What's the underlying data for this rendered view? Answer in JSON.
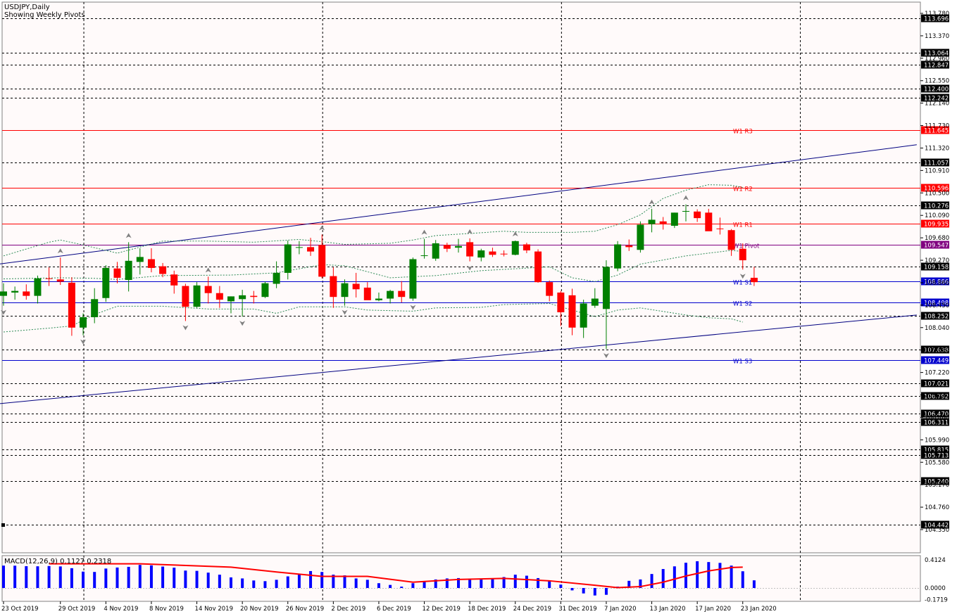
{
  "header": {
    "symbol": "USDJPY,Daily",
    "subtitle": "Showing Weekly Pivots"
  },
  "colors": {
    "background": "#fffafa",
    "bull": "#008000",
    "bear": "#ff0000",
    "pivot": "#800080",
    "resistance": "#ff0000",
    "support": "#0000cd",
    "channel": "#000080",
    "envelope": "#2e8b57",
    "fractal": "#808080",
    "macd_hist": "#0000ff",
    "macd_signal": "#ff0000"
  },
  "chart_data": [
    {
      "type": "candlestick",
      "title": "USDJPY,Daily",
      "subtitle": "Showing Weekly Pivots",
      "ylim": [
        104.35,
        113.78
      ],
      "price_scale_labels": [
        "113.780",
        "113.370",
        "112.960",
        "112.550",
        "112.140",
        "111.730",
        "111.320",
        "110.910",
        "110.500",
        "110.090",
        "109.680",
        "109.270",
        "108.860",
        "108.450",
        "108.040",
        "107.630",
        "107.220",
        "106.810",
        "106.400",
        "105.990",
        "105.580",
        "105.170",
        "104.760",
        "104.350"
      ],
      "x_labels": [
        {
          "index": 0,
          "label": "23 Oct 2019"
        },
        {
          "index": 5,
          "label": "29 Oct 2019"
        },
        {
          "index": 9,
          "label": "4 Nov 2019"
        },
        {
          "index": 13,
          "label": "8 Nov 2019"
        },
        {
          "index": 17,
          "label": "14 Nov 2019"
        },
        {
          "index": 21,
          "label": "20 Nov 2019"
        },
        {
          "index": 25,
          "label": "26 Nov 2019"
        },
        {
          "index": 29,
          "label": "2 Dec 2019"
        },
        {
          "index": 33,
          "label": "6 Dec 2019"
        },
        {
          "index": 37,
          "label": "12 Dec 2019"
        },
        {
          "index": 41,
          "label": "18 Dec 2019"
        },
        {
          "index": 45,
          "label": "24 Dec 2019"
        },
        {
          "index": 49,
          "label": "31 Dec 2019"
        },
        {
          "index": 53,
          "label": "7 Jan 2020"
        },
        {
          "index": 57,
          "label": "13 Jan 2020"
        },
        {
          "index": 61,
          "label": "17 Jan 2020"
        },
        {
          "index": 65,
          "label": "23 Jan 2020"
        }
      ],
      "ohlc": [
        [
          108.62,
          108.85,
          108.44,
          108.7
        ],
        [
          108.68,
          108.79,
          108.55,
          108.71
        ],
        [
          108.7,
          108.83,
          108.55,
          108.62
        ],
        [
          108.62,
          108.99,
          108.48,
          108.94
        ],
        [
          108.94,
          109.14,
          108.8,
          108.93
        ],
        [
          108.92,
          109.32,
          108.82,
          108.88
        ],
        [
          108.86,
          108.96,
          107.89,
          108.04
        ],
        [
          108.04,
          108.3,
          107.9,
          108.23
        ],
        [
          108.23,
          108.76,
          108.12,
          108.56
        ],
        [
          108.58,
          109.18,
          108.51,
          109.13
        ],
        [
          109.12,
          109.24,
          108.85,
          108.95
        ],
        [
          108.91,
          109.6,
          108.7,
          109.26
        ],
        [
          109.24,
          109.49,
          109.01,
          109.33
        ],
        [
          109.29,
          109.49,
          109.05,
          109.13
        ],
        [
          109.16,
          109.22,
          108.96,
          109.02
        ],
        [
          109.01,
          109.08,
          108.66,
          108.81
        ],
        [
          108.8,
          108.84,
          108.16,
          108.42
        ],
        [
          108.42,
          108.87,
          108.4,
          108.81
        ],
        [
          108.8,
          108.97,
          108.48,
          108.67
        ],
        [
          108.67,
          108.8,
          108.4,
          108.55
        ],
        [
          108.52,
          108.61,
          108.3,
          108.61
        ],
        [
          108.56,
          108.73,
          108.24,
          108.63
        ],
        [
          108.62,
          108.71,
          108.48,
          108.6
        ],
        [
          108.6,
          108.88,
          108.58,
          108.85
        ],
        [
          108.84,
          109.25,
          108.76,
          109.04
        ],
        [
          109.04,
          109.63,
          108.92,
          109.56
        ],
        [
          109.5,
          109.62,
          109.38,
          109.51
        ],
        [
          109.51,
          109.68,
          109.35,
          109.43
        ],
        [
          109.55,
          109.74,
          108.94,
          108.97
        ],
        [
          108.98,
          109.14,
          108.4,
          108.6
        ],
        [
          108.6,
          108.92,
          108.44,
          108.85
        ],
        [
          108.84,
          109.04,
          108.59,
          108.74
        ],
        [
          108.77,
          108.87,
          108.56,
          108.54
        ],
        [
          108.54,
          108.68,
          108.52,
          108.57
        ],
        [
          108.57,
          108.73,
          108.48,
          108.71
        ],
        [
          108.71,
          108.89,
          108.5,
          108.6
        ],
        [
          108.57,
          109.32,
          108.53,
          109.29
        ],
        [
          109.35,
          109.66,
          109.3,
          109.36
        ],
        [
          109.3,
          109.64,
          109.26,
          109.58
        ],
        [
          109.55,
          109.59,
          109.42,
          109.48
        ],
        [
          109.5,
          109.66,
          109.41,
          109.53
        ],
        [
          109.6,
          109.67,
          109.25,
          109.34
        ],
        [
          109.32,
          109.48,
          109.25,
          109.45
        ],
        [
          109.43,
          109.5,
          109.33,
          109.37
        ],
        [
          109.39,
          109.45,
          109.34,
          109.38
        ],
        [
          109.37,
          109.63,
          109.36,
          109.62
        ],
        [
          109.56,
          109.59,
          109.4,
          109.45
        ],
        [
          109.43,
          109.47,
          108.86,
          108.87
        ],
        [
          108.87,
          108.9,
          108.52,
          108.62
        ],
        [
          108.68,
          108.71,
          108.07,
          108.32
        ],
        [
          108.63,
          108.75,
          107.9,
          108.04
        ],
        [
          108.04,
          108.55,
          107.85,
          108.48
        ],
        [
          108.44,
          108.76,
          108.4,
          108.57
        ],
        [
          108.38,
          109.27,
          107.65,
          109.15
        ],
        [
          109.12,
          109.62,
          109.07,
          109.56
        ],
        [
          109.54,
          109.65,
          109.44,
          109.51
        ],
        [
          109.46,
          109.98,
          109.41,
          109.92
        ],
        [
          109.93,
          110.21,
          109.78,
          110.01
        ],
        [
          109.98,
          110.06,
          109.83,
          109.94
        ],
        [
          109.9,
          110.14,
          109.86,
          110.14
        ],
        [
          110.16,
          110.29,
          109.98,
          110.17
        ],
        [
          110.16,
          110.2,
          109.97,
          110.04
        ],
        [
          110.14,
          110.21,
          109.81,
          109.8
        ],
        [
          109.85,
          110.05,
          109.74,
          109.84
        ],
        [
          109.82,
          109.84,
          109.35,
          109.46
        ],
        [
          109.48,
          109.58,
          109.1,
          109.27
        ],
        [
          108.95,
          109.15,
          108.8,
          108.87
        ]
      ],
      "horizontal_levels": [
        {
          "value": 113.696,
          "label": "113.696",
          "style": "dashed",
          "color": "#000000"
        },
        {
          "value": 113.064,
          "label": "113.064",
          "style": "dashed",
          "color": "#000000"
        },
        {
          "value": 112.847,
          "label": "112.847",
          "style": "dashed",
          "color": "#000000"
        },
        {
          "value": 112.4,
          "label": "112.400",
          "style": "dashed",
          "color": "#000000"
        },
        {
          "value": 112.242,
          "label": "112.242",
          "style": "dashed",
          "color": "#000000"
        },
        {
          "value": 111.645,
          "label": "111.645",
          "style": "solid",
          "color": "#ff0000",
          "name": "W1 R3"
        },
        {
          "value": 111.057,
          "label": "111.057",
          "style": "dashed",
          "color": "#000000"
        },
        {
          "value": 110.596,
          "label": "110.596",
          "style": "solid",
          "color": "#ff0000",
          "name": "W1 R2"
        },
        {
          "value": 110.276,
          "label": "110.276",
          "style": "dashed",
          "color": "#000000"
        },
        {
          "value": 109.935,
          "label": "109.935",
          "style": "solid",
          "color": "#ff0000",
          "name": "W1 R1"
        },
        {
          "value": 109.547,
          "label": "109.547",
          "style": "solid",
          "color": "#800080",
          "name": "W1 Pivot"
        },
        {
          "value": 109.158,
          "label": "109.158",
          "style": "dashed",
          "color": "#000000"
        },
        {
          "value": 108.886,
          "label": "108.886",
          "style": "solid",
          "color": "#0000cd",
          "name": "W1 S1"
        },
        {
          "value": 108.498,
          "label": "108.498",
          "style": "solid",
          "color": "#0000cd",
          "name": "W1 S2"
        },
        {
          "value": 108.252,
          "label": "108.252",
          "style": "dashed",
          "color": "#000000"
        },
        {
          "value": 107.638,
          "label": "107.638",
          "style": "dashed",
          "color": "#000000"
        },
        {
          "value": 107.449,
          "label": "107.449",
          "style": "solid",
          "color": "#0000cd",
          "name": "W1 S3"
        },
        {
          "value": 107.021,
          "label": "107.021",
          "style": "dashed",
          "color": "#000000"
        },
        {
          "value": 106.792,
          "label": "106.792",
          "style": "dashed",
          "color": "#000000"
        },
        {
          "value": 106.47,
          "label": "106.470",
          "style": "dashed",
          "color": "#000000"
        },
        {
          "value": 106.311,
          "label": "106.311",
          "style": "dashed",
          "color": "#000000"
        },
        {
          "value": 105.815,
          "label": "105.815",
          "style": "dashed",
          "color": "#000000"
        },
        {
          "value": 105.713,
          "label": "105.713",
          "style": "dashed",
          "color": "#000000"
        },
        {
          "value": 105.24,
          "label": "105.240",
          "style": "dashed",
          "color": "#000000"
        },
        {
          "value": 104.442,
          "label": "104.442",
          "style": "dashed",
          "color": "#000000"
        }
      ],
      "channel_lines": [
        {
          "start": {
            "index": -0.4,
            "value": 109.2
          },
          "end": {
            "index": 80.3,
            "value": 111.38
          }
        },
        {
          "start": {
            "index": -0.4,
            "value": 106.65
          },
          "end": {
            "index": 80.3,
            "value": 108.27
          }
        }
      ],
      "envelope_upper": [
        [
          0,
          109.35
        ],
        [
          4,
          109.6
        ],
        [
          5,
          109.64
        ],
        [
          7,
          109.55
        ],
        [
          10,
          109.4
        ],
        [
          14,
          109.62
        ],
        [
          18,
          109.62
        ],
        [
          22,
          109.6
        ],
        [
          26,
          109.65
        ],
        [
          28,
          109.61
        ],
        [
          30,
          109.56
        ],
        [
          34,
          109.58
        ],
        [
          36,
          109.64
        ],
        [
          38,
          109.72
        ],
        [
          44,
          109.8
        ],
        [
          46,
          109.78
        ],
        [
          50,
          109.78
        ],
        [
          52,
          109.8
        ],
        [
          54,
          109.92
        ],
        [
          56,
          110.1
        ],
        [
          58,
          110.4
        ],
        [
          60,
          110.55
        ],
        [
          62,
          110.65
        ],
        [
          64,
          110.64
        ],
        [
          65,
          110.6
        ]
      ],
      "envelope_middle": [
        [
          0,
          108.93
        ],
        [
          5,
          108.95
        ],
        [
          8,
          108.94
        ],
        [
          10,
          108.92
        ],
        [
          14,
          108.99
        ],
        [
          20,
          109.0
        ],
        [
          24,
          109.04
        ],
        [
          28,
          109.19
        ],
        [
          30,
          109.17
        ],
        [
          34,
          108.95
        ],
        [
          38,
          108.99
        ],
        [
          42,
          109.08
        ],
        [
          48,
          109.15
        ],
        [
          50,
          108.95
        ],
        [
          52,
          108.88
        ],
        [
          54,
          109.0
        ],
        [
          56,
          109.2
        ],
        [
          60,
          109.35
        ],
        [
          64,
          109.45
        ],
        [
          65,
          109.43
        ]
      ],
      "envelope_lower": [
        [
          0,
          107.96
        ],
        [
          4,
          108.03
        ],
        [
          6,
          108.07
        ],
        [
          8,
          108.28
        ],
        [
          10,
          108.43
        ],
        [
          14,
          108.43
        ],
        [
          18,
          108.38
        ],
        [
          22,
          108.38
        ],
        [
          24,
          108.3
        ],
        [
          26,
          108.42
        ],
        [
          30,
          108.42
        ],
        [
          32,
          108.36
        ],
        [
          36,
          108.34
        ],
        [
          38,
          108.4
        ],
        [
          42,
          108.41
        ],
        [
          44,
          108.46
        ],
        [
          48,
          108.48
        ],
        [
          52,
          108.24
        ],
        [
          54,
          108.36
        ],
        [
          56,
          108.4
        ],
        [
          60,
          108.27
        ],
        [
          62,
          108.22
        ],
        [
          64,
          108.2
        ],
        [
          65,
          108.14
        ]
      ],
      "fractals_up": [
        5,
        11,
        18,
        28,
        37,
        41,
        45,
        57,
        60
      ],
      "fractals_down": [
        0,
        7,
        16,
        21,
        30,
        36,
        41,
        53,
        65
      ]
    },
    {
      "type": "bar",
      "title": "MACD(12,26,9) 0.1127 0.2318",
      "ylim": [
        -0.1719,
        0.4124
      ],
      "scale_labels": [
        "0.4124",
        "0.0000",
        "-0.1719"
      ],
      "histogram": [
        0.328,
        0.327,
        0.32,
        0.318,
        0.322,
        0.316,
        0.29,
        0.24,
        0.235,
        0.285,
        0.3,
        0.31,
        0.338,
        0.331,
        0.314,
        0.298,
        0.255,
        0.251,
        0.225,
        0.195,
        0.155,
        0.14,
        0.11,
        0.1,
        0.12,
        0.17,
        0.205,
        0.248,
        0.235,
        0.195,
        0.185,
        0.14,
        0.12,
        0.07,
        0.045,
        0.02,
        0.07,
        0.1,
        0.125,
        0.14,
        0.145,
        0.135,
        0.138,
        0.14,
        0.16,
        0.195,
        0.18,
        0.145,
        0.1,
        0.05,
        -0.035,
        -0.08,
        -0.11,
        -0.1,
        0.02,
        0.105,
        0.125,
        0.205,
        0.278,
        0.317,
        0.37,
        0.392,
        0.38,
        0.368,
        0.328,
        0.245,
        0.112
      ],
      "signal": [
        [
          4,
          0.355
        ],
        [
          12,
          0.355
        ],
        [
          20,
          0.305
        ],
        [
          24,
          0.235
        ],
        [
          28,
          0.17
        ],
        [
          32,
          0.17
        ],
        [
          36,
          0.085
        ],
        [
          40,
          0.125
        ],
        [
          44,
          0.14
        ],
        [
          48,
          0.105
        ],
        [
          52,
          0.04
        ],
        [
          54,
          0.005
        ],
        [
          56,
          0.02
        ],
        [
          58,
          0.085
        ],
        [
          60,
          0.175
        ],
        [
          62,
          0.25
        ],
        [
          64,
          0.3
        ],
        [
          65,
          0.305
        ]
      ]
    }
  ]
}
